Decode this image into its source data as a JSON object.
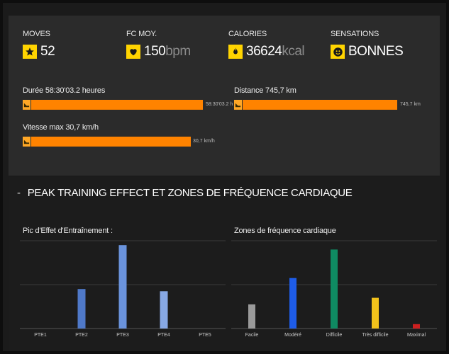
{
  "stats": [
    {
      "label": "MOVES",
      "value": "52",
      "unit": "",
      "icon": "star-icon"
    },
    {
      "label": "FC MOY.",
      "value": "150",
      "unit": "bpm",
      "icon": "heart-icon"
    },
    {
      "label": "CALORIES",
      "value": "36624",
      "unit": "kcal",
      "icon": "flame-icon"
    },
    {
      "label": "SENSATIONS",
      "value": "BONNES",
      "unit": "",
      "icon": "smiley-icon"
    }
  ],
  "bars": {
    "duration": {
      "label": "Durée 58:30'03.2 heures",
      "value_text": "58:30'03.2 h",
      "fraction": 1.0
    },
    "distance": {
      "label": "Distance 745,7 km",
      "value_text": "745,7 km",
      "fraction": 1.0
    },
    "speed": {
      "label": "Vitesse max 30,7 km/h",
      "value_text": "30,7 km/h",
      "fraction": 1.0
    }
  },
  "colors": {
    "accent": "#ff8300",
    "icon_bg": "#ffd400"
  },
  "section": {
    "dash": "-",
    "title": "PEAK TRAINING EFFECT ET ZONES DE FRÉQUENCE CARDIAQUE"
  },
  "chart_data": [
    {
      "type": "bar",
      "title": "Pic d'Effet d'Entraînement :",
      "categories": [
        "PTE1",
        "PTE2",
        "PTE3",
        "PTE4",
        "PTE5"
      ],
      "values": [
        0,
        9,
        19,
        8.5,
        0
      ],
      "colors": [
        "#6b8fd6",
        "#4f79c9",
        "#6a93dc",
        "#87a8e4",
        "#6b8fd6"
      ],
      "ylim": [
        0,
        20
      ],
      "grid": true
    },
    {
      "type": "bar",
      "title": "Zones de fréquence cardiaque",
      "categories": [
        "Facile",
        "Modéré",
        "Difficile",
        "Très difficile",
        "Maximal"
      ],
      "values": [
        5.5,
        11.5,
        18,
        7,
        1
      ],
      "colors": [
        "#9a9a9a",
        "#1e5ce8",
        "#0f8a62",
        "#f2c21b",
        "#cc1f1f"
      ],
      "ylim": [
        0,
        20
      ],
      "grid": true
    }
  ]
}
